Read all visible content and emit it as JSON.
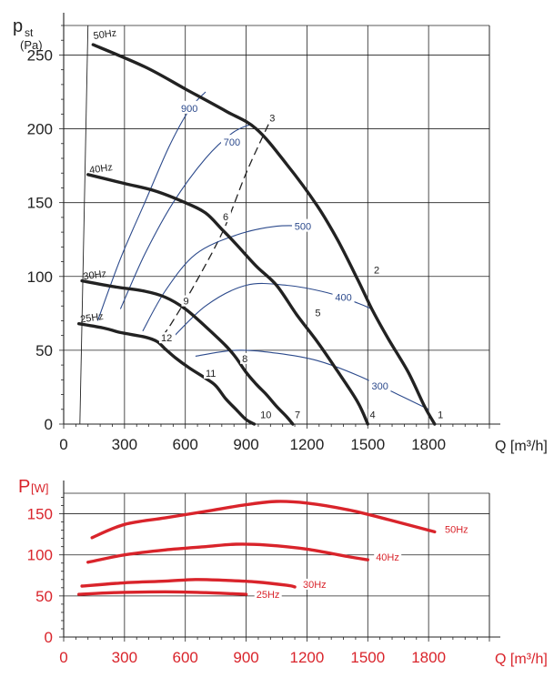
{
  "chart_data": [
    {
      "type": "line",
      "title": "",
      "ylabel_main": "p",
      "ylabel_sub": "st",
      "ylabel_unit": "(Pa)",
      "xlabel": "Q [m³/h]",
      "xlim": [
        0,
        2100
      ],
      "ylim": [
        0,
        270
      ],
      "xticks": [
        0,
        300,
        600,
        900,
        1200,
        1500,
        1800
      ],
      "yticks": [
        0,
        50,
        100,
        150,
        200,
        250
      ],
      "grid": true,
      "fan_curves": [
        {
          "name": "50Hz",
          "points": [
            [
              145,
              257
            ],
            [
              400,
              242
            ],
            [
              600,
              227
            ],
            [
              800,
              212
            ],
            [
              950,
              200
            ],
            [
              1100,
              176
            ],
            [
              1250,
              148
            ],
            [
              1350,
              125
            ],
            [
              1450,
              98
            ],
            [
              1520,
              78
            ],
            [
              1600,
              58
            ],
            [
              1700,
              35
            ],
            [
              1780,
              12
            ],
            [
              1830,
              0
            ]
          ]
        },
        {
          "name": "40Hz",
          "points": [
            [
              120,
              169
            ],
            [
              300,
              163
            ],
            [
              450,
              158
            ],
            [
              600,
              150
            ],
            [
              700,
              143
            ],
            [
              780,
              132
            ],
            [
              850,
              122
            ],
            [
              950,
              107
            ],
            [
              1050,
              94
            ],
            [
              1150,
              74
            ],
            [
              1250,
              56
            ],
            [
              1350,
              36
            ],
            [
              1450,
              15
            ],
            [
              1500,
              0
            ]
          ]
        },
        {
          "name": "30Hz",
          "points": [
            [
              90,
              97
            ],
            [
              250,
              93
            ],
            [
              400,
              90
            ],
            [
              500,
              86
            ],
            [
              600,
              78
            ],
            [
              700,
              66
            ],
            [
              800,
              53
            ],
            [
              850,
              45
            ],
            [
              900,
              35
            ],
            [
              950,
              27
            ],
            [
              1000,
              20
            ],
            [
              1050,
              12
            ],
            [
              1100,
              5
            ],
            [
              1130,
              0
            ]
          ]
        },
        {
          "name": "25Hz",
          "points": [
            [
              75,
              68
            ],
            [
              200,
              65
            ],
            [
              280,
              62
            ],
            [
              400,
              59
            ],
            [
              460,
              56
            ],
            [
              500,
              51
            ],
            [
              550,
              45
            ],
            [
              620,
              38
            ],
            [
              700,
              31
            ],
            [
              750,
              26
            ],
            [
              800,
              17
            ],
            [
              850,
              10
            ],
            [
              900,
              3
            ],
            [
              940,
              0
            ]
          ]
        }
      ],
      "speed_curves": [
        {
          "name": "900",
          "label_at": [
            620,
            214
          ],
          "points": [
            [
              168,
              70
            ],
            [
              280,
              112
            ],
            [
              400,
              150
            ],
            [
              520,
              188
            ],
            [
              620,
              213
            ],
            [
              700,
              225
            ]
          ]
        },
        {
          "name": "700",
          "label_at": [
            830,
            191
          ],
          "points": [
            [
              280,
              78
            ],
            [
              400,
              115
            ],
            [
              540,
              150
            ],
            [
              700,
              180
            ],
            [
              830,
              197
            ],
            [
              920,
              203
            ]
          ]
        },
        {
          "name": "500",
          "label_at": [
            1180,
            134
          ],
          "points": [
            [
              390,
              63
            ],
            [
              500,
              90
            ],
            [
              650,
              115
            ],
            [
              850,
              128
            ],
            [
              1050,
              134
            ],
            [
              1210,
              134
            ]
          ]
        },
        {
          "name": "400",
          "label_at": [
            1380,
            86
          ],
          "points": [
            [
              520,
              56
            ],
            [
              700,
              80
            ],
            [
              900,
              94
            ],
            [
              1100,
              94
            ],
            [
              1300,
              89
            ],
            [
              1450,
              82
            ],
            [
              1520,
              78
            ]
          ]
        },
        {
          "name": "300",
          "label_at": [
            1560,
            26
          ],
          "points": [
            [
              650,
              46
            ],
            [
              850,
              50
            ],
            [
              1050,
              48
            ],
            [
              1250,
              43
            ],
            [
              1450,
              33
            ],
            [
              1650,
              20
            ],
            [
              1800,
              10
            ]
          ]
        }
      ],
      "system_curves": [
        {
          "name": "system-curve-high",
          "points": [
            [
              1010,
              203
            ],
            [
              900,
              170
            ],
            [
              790,
              132
            ],
            [
              660,
              98
            ],
            [
              540,
              70
            ],
            [
              490,
              60
            ]
          ],
          "dashed": true
        },
        {
          "name": "system-curve-bottom",
          "points": [
            [
              80,
              0
            ],
            [
              120,
              270
            ]
          ],
          "dashed": false
        }
      ],
      "labels": [
        {
          "text": "50Hz",
          "x": 140,
          "y": 262
        },
        {
          "text": "40Hz",
          "x": 120,
          "y": 171
        },
        {
          "text": "30Hz",
          "x": 90,
          "y": 99
        },
        {
          "text": "25Hz",
          "x": 75,
          "y": 70
        }
      ],
      "point_labels": [
        {
          "text": "1",
          "x": 1845,
          "y": 4
        },
        {
          "text": "2",
          "x": 1530,
          "y": 102
        },
        {
          "text": "3",
          "x": 1015,
          "y": 205
        },
        {
          "text": "4",
          "x": 1510,
          "y": 4
        },
        {
          "text": "5",
          "x": 1240,
          "y": 73
        },
        {
          "text": "6",
          "x": 785,
          "y": 138
        },
        {
          "text": "7",
          "x": 1140,
          "y": 4
        },
        {
          "text": "8",
          "x": 880,
          "y": 42
        },
        {
          "text": "9",
          "x": 590,
          "y": 81
        },
        {
          "text": "10",
          "x": 970,
          "y": 4
        },
        {
          "text": "11",
          "x": 700,
          "y": 32
        },
        {
          "text": "12",
          "x": 480,
          "y": 56
        }
      ]
    },
    {
      "type": "line",
      "title": "",
      "ylabel_main": "P",
      "ylabel_unit": "[W]",
      "xlabel": "Q [m³/h]",
      "xlim": [
        0,
        2100
      ],
      "ylim": [
        0,
        175
      ],
      "xticks": [
        0,
        300,
        600,
        900,
        1200,
        1500,
        1800
      ],
      "yticks": [
        0,
        50,
        100,
        150
      ],
      "grid": true,
      "series": [
        {
          "name": "50Hz",
          "points": [
            [
              140,
              121
            ],
            [
              300,
              137
            ],
            [
              500,
              145
            ],
            [
              700,
              153
            ],
            [
              900,
              161
            ],
            [
              1050,
              165
            ],
            [
              1200,
              163
            ],
            [
              1400,
              155
            ],
            [
              1600,
              143
            ],
            [
              1830,
              128
            ]
          ]
        },
        {
          "name": "40Hz",
          "points": [
            [
              120,
              91
            ],
            [
              300,
              100
            ],
            [
              500,
              106
            ],
            [
              700,
              110
            ],
            [
              850,
              113
            ],
            [
              1000,
              112
            ],
            [
              1200,
              107
            ],
            [
              1400,
              98
            ],
            [
              1500,
              94
            ]
          ]
        },
        {
          "name": "30Hz",
          "points": [
            [
              90,
              62
            ],
            [
              300,
              66
            ],
            [
              500,
              68
            ],
            [
              650,
              70
            ],
            [
              800,
              69
            ],
            [
              950,
              67
            ],
            [
              1100,
              63
            ],
            [
              1140,
              61
            ]
          ]
        },
        {
          "name": "25Hz",
          "points": [
            [
              75,
              52
            ],
            [
              250,
              54
            ],
            [
              500,
              55
            ],
            [
              700,
              54
            ],
            [
              900,
              52
            ]
          ]
        }
      ],
      "series_label_positions": [
        {
          "text": "50Hz",
          "x": 1880,
          "y": 128
        },
        {
          "text": "40Hz",
          "x": 1540,
          "y": 94
        },
        {
          "text": "30Hz",
          "x": 1180,
          "y": 61
        },
        {
          "text": "25Hz",
          "x": 950,
          "y": 49
        }
      ]
    }
  ],
  "colors": {
    "fan_curve": "#222222",
    "speed_curve": "#2c4a8c",
    "power_curve": "#d9242b",
    "grid": "#222222",
    "axis_label_red": "#d9242b"
  }
}
